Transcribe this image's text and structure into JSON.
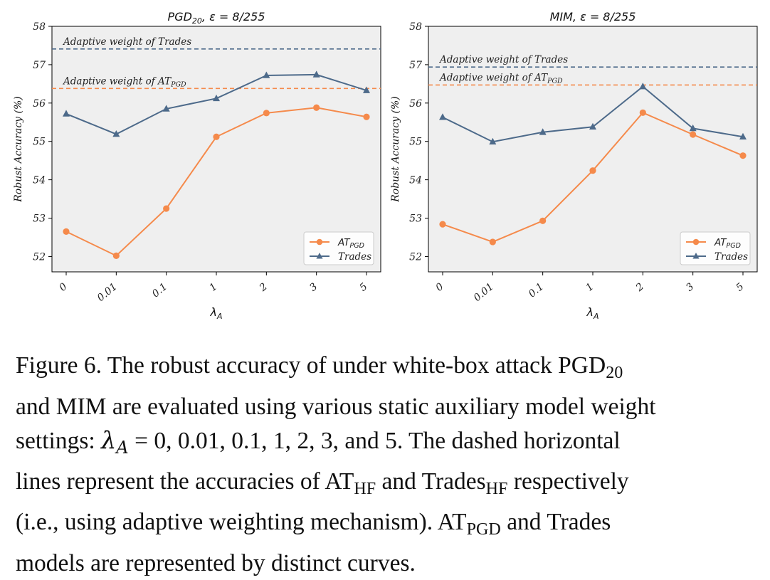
{
  "chart_data": [
    {
      "type": "line",
      "title_main": "PGD",
      "title_sub": "20",
      "title_rest": ", ε = 8/255",
      "xlabel": "λ",
      "xlabel_sub": "A",
      "ylabel": "Robust Accuracy (%)",
      "categories": [
        "0",
        "0.01",
        "0.1",
        "1",
        "2",
        "3",
        "5"
      ],
      "ylim": [
        51.6,
        58
      ],
      "yticks": [
        "52",
        "53",
        "54",
        "55",
        "56",
        "57",
        "58"
      ],
      "series": [
        {
          "name": "AT",
          "name_sub": "PGD",
          "color": "#f58a4b",
          "marker": "circle",
          "values": [
            52.65,
            52.02,
            53.25,
            55.12,
            55.74,
            55.88,
            55.64
          ]
        },
        {
          "name": "Trades",
          "name_sub": "",
          "color": "#4d6a8a",
          "marker": "triangle",
          "values": [
            55.72,
            55.19,
            55.85,
            56.12,
            56.72,
            56.74,
            56.33
          ]
        }
      ],
      "reference_lines": [
        {
          "label": "Adaptive weight of Trades",
          "label_sub": "",
          "value": 57.41,
          "color": "#4d6a8a"
        },
        {
          "label": "Adaptive weight of AT",
          "label_sub": "PGD",
          "value": 56.38,
          "color": "#f58a4b"
        }
      ],
      "legend": "bottom-right"
    },
    {
      "type": "line",
      "title_main": "MIM",
      "title_sub": "",
      "title_rest": ", ε = 8/255",
      "xlabel": "λ",
      "xlabel_sub": "A",
      "ylabel": "Robust Accuracy (%)",
      "categories": [
        "0",
        "0.01",
        "0.1",
        "1",
        "2",
        "3",
        "5"
      ],
      "ylim": [
        51.6,
        58
      ],
      "yticks": [
        "52",
        "53",
        "54",
        "55",
        "56",
        "57",
        "58"
      ],
      "series": [
        {
          "name": "AT",
          "name_sub": "PGD",
          "color": "#f58a4b",
          "marker": "circle",
          "values": [
            52.84,
            52.38,
            52.93,
            54.24,
            55.75,
            55.18,
            54.63
          ]
        },
        {
          "name": "Trades",
          "name_sub": "",
          "color": "#4d6a8a",
          "marker": "triangle",
          "values": [
            55.63,
            54.99,
            55.24,
            55.38,
            56.43,
            55.34,
            55.12
          ]
        }
      ],
      "reference_lines": [
        {
          "label": "Adaptive weight of Trades",
          "label_sub": "",
          "value": 56.94,
          "color": "#4d6a8a"
        },
        {
          "label": "Adaptive weight of AT",
          "label_sub": "PGD",
          "value": 56.47,
          "color": "#f58a4b"
        }
      ],
      "legend": "bottom-right"
    }
  ],
  "caption": {
    "l1_a": "Figure 6.  The robust accuracy of under white-box attack PGD",
    "l1_sub": "20",
    "l2": "and MIM are evaluated using various static auxiliary model weight",
    "l3_a": "settings: ",
    "l3_math_lambda": "λ",
    "l3_math_sub": "A",
    "l3_b": " = 0, 0.01, 0.1, 1, 2, 3, and 5.  The dashed horizontal",
    "l4_a": "lines represent the accuracies of AT",
    "l4_sub1": "HF",
    "l4_b": " and Trades",
    "l4_sub2": "HF",
    "l4_c": " respectively",
    "l5_a": "(i.e., using adaptive weighting mechanism).  AT",
    "l5_sub": "PGD",
    "l5_b": " and Trades",
    "l6": "models are represented by distinct curves."
  }
}
